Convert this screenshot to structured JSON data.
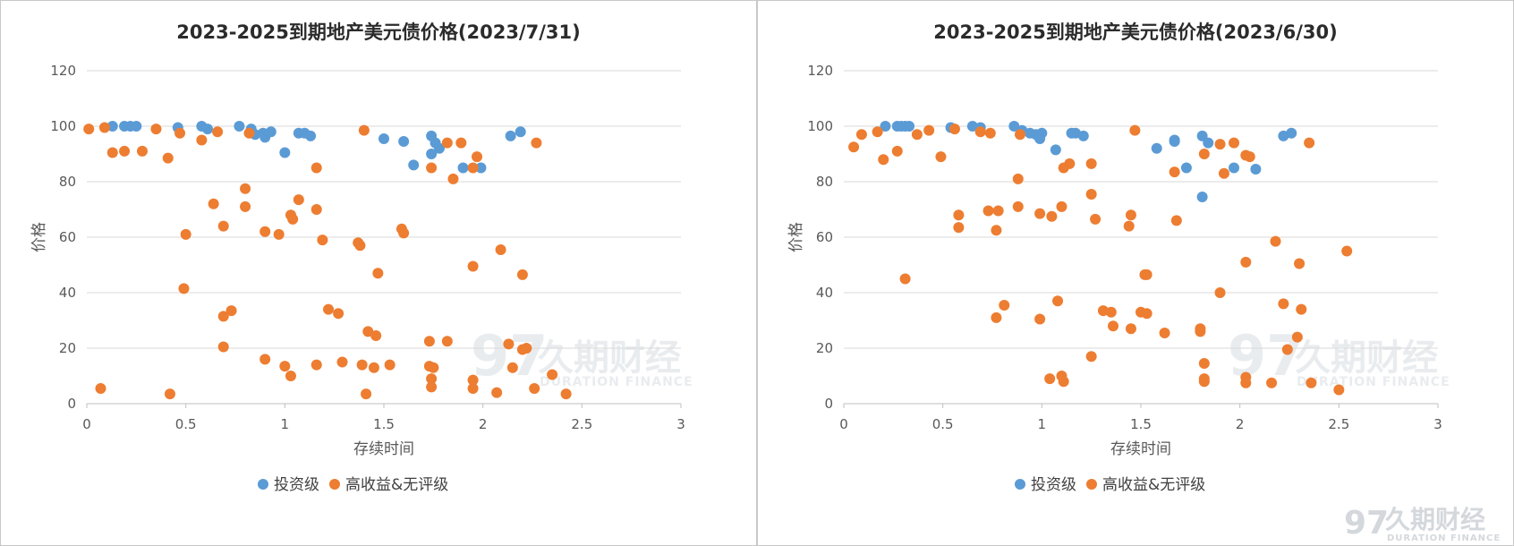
{
  "colors": {
    "invest": "#5b9bd5",
    "high": "#ed7d31"
  },
  "watermark": {
    "brand": "久期财经",
    "sub": "DURATION FINANCE"
  },
  "chart_data": [
    {
      "type": "scatter",
      "title": "2023-2025到期地产美元债价格(2023/7/31)",
      "xlabel": "存续时间",
      "ylabel": "价格",
      "xlim": [
        0,
        3
      ],
      "ylim": [
        0,
        120
      ],
      "xticks": [
        "0",
        "0.5",
        "1",
        "1.5",
        "2",
        "2.5",
        "3"
      ],
      "yticks": [
        "0",
        "20",
        "40",
        "60",
        "80",
        "100",
        "120"
      ],
      "grid": true,
      "legend_position": "bottom",
      "series": [
        {
          "name": "投资级",
          "points": [
            [
              0.13,
              100
            ],
            [
              0.19,
              100
            ],
            [
              0.22,
              100
            ],
            [
              0.25,
              100
            ],
            [
              0.46,
              99.5
            ],
            [
              0.58,
              100
            ],
            [
              0.61,
              99
            ],
            [
              0.77,
              100
            ],
            [
              0.83,
              99
            ],
            [
              0.85,
              97
            ],
            [
              0.89,
              97.5
            ],
            [
              0.9,
              96
            ],
            [
              0.93,
              98
            ],
            [
              1.0,
              90.5
            ],
            [
              1.07,
              97.5
            ],
            [
              1.1,
              97.5
            ],
            [
              1.13,
              96.5
            ],
            [
              1.5,
              95.5
            ],
            [
              1.6,
              94.5
            ],
            [
              1.65,
              86
            ],
            [
              1.74,
              96.5
            ],
            [
              1.74,
              90
            ],
            [
              1.76,
              94
            ],
            [
              1.78,
              92
            ],
            [
              1.9,
              85
            ],
            [
              1.99,
              85
            ],
            [
              2.14,
              96.5
            ],
            [
              2.19,
              98
            ]
          ]
        },
        {
          "name": "高收益&无评级",
          "points": [
            [
              0.01,
              99
            ],
            [
              0.07,
              5.5
            ],
            [
              0.09,
              99.5
            ],
            [
              0.13,
              90.5
            ],
            [
              0.19,
              91
            ],
            [
              0.28,
              91
            ],
            [
              0.35,
              99
            ],
            [
              0.41,
              88.5
            ],
            [
              0.42,
              3.5
            ],
            [
              0.47,
              97.5
            ],
            [
              0.49,
              41.5
            ],
            [
              0.5,
              61
            ],
            [
              0.58,
              95
            ],
            [
              0.64,
              72
            ],
            [
              0.66,
              98
            ],
            [
              0.69,
              64
            ],
            [
              0.69,
              31.5
            ],
            [
              0.69,
              20.5
            ],
            [
              0.73,
              33.5
            ],
            [
              0.8,
              77.5
            ],
            [
              0.8,
              71
            ],
            [
              0.82,
              97.5
            ],
            [
              0.9,
              62
            ],
            [
              0.9,
              16
            ],
            [
              0.97,
              61
            ],
            [
              1.0,
              13.5
            ],
            [
              1.03,
              10
            ],
            [
              1.03,
              68
            ],
            [
              1.04,
              66.5
            ],
            [
              1.07,
              73.5
            ],
            [
              1.16,
              85
            ],
            [
              1.16,
              70
            ],
            [
              1.16,
              14
            ],
            [
              1.19,
              59
            ],
            [
              1.22,
              34
            ],
            [
              1.27,
              32.5
            ],
            [
              1.29,
              15
            ],
            [
              1.37,
              58
            ],
            [
              1.38,
              57
            ],
            [
              1.39,
              14
            ],
            [
              1.4,
              98.5
            ],
            [
              1.41,
              3.5
            ],
            [
              1.42,
              26
            ],
            [
              1.45,
              13
            ],
            [
              1.46,
              24.5
            ],
            [
              1.47,
              47
            ],
            [
              1.53,
              14
            ],
            [
              1.59,
              63
            ],
            [
              1.6,
              61.5
            ],
            [
              1.73,
              22.5
            ],
            [
              1.73,
              13.5
            ],
            [
              1.74,
              85
            ],
            [
              1.74,
              9
            ],
            [
              1.74,
              6
            ],
            [
              1.75,
              13
            ],
            [
              1.82,
              94
            ],
            [
              1.82,
              22.5
            ],
            [
              1.85,
              81
            ],
            [
              1.89,
              94
            ],
            [
              1.95,
              85
            ],
            [
              1.95,
              49.5
            ],
            [
              1.95,
              8.5
            ],
            [
              1.95,
              5.5
            ],
            [
              1.97,
              89
            ],
            [
              2.07,
              4
            ],
            [
              2.09,
              55.5
            ],
            [
              2.13,
              21.5
            ],
            [
              2.15,
              13
            ],
            [
              2.2,
              19.5
            ],
            [
              2.2,
              46.5
            ],
            [
              2.22,
              20
            ],
            [
              2.26,
              5.5
            ],
            [
              2.27,
              94
            ],
            [
              2.35,
              10.5
            ],
            [
              2.42,
              3.5
            ]
          ]
        }
      ]
    },
    {
      "type": "scatter",
      "title": "2023-2025到期地产美元债价格(2023/6/30)",
      "xlabel": "存续时间",
      "ylabel": "价格",
      "xlim": [
        0,
        3
      ],
      "ylim": [
        0,
        120
      ],
      "xticks": [
        "0",
        "0.5",
        "1",
        "1.5",
        "2",
        "2.5",
        "3"
      ],
      "yticks": [
        "0",
        "20",
        "40",
        "60",
        "80",
        "100",
        "120"
      ],
      "grid": true,
      "legend_position": "bottom",
      "series": [
        {
          "name": "投资级",
          "points": [
            [
              0.21,
              100
            ],
            [
              0.27,
              100
            ],
            [
              0.29,
              100
            ],
            [
              0.31,
              100
            ],
            [
              0.33,
              100
            ],
            [
              0.54,
              99.5
            ],
            [
              0.65,
              100
            ],
            [
              0.69,
              99.5
            ],
            [
              0.86,
              100
            ],
            [
              0.9,
              98.5
            ],
            [
              0.94,
              97.5
            ],
            [
              0.97,
              97
            ],
            [
              0.99,
              95.5
            ],
            [
              1.0,
              97.5
            ],
            [
              1.07,
              91.5
            ],
            [
              1.15,
              97.5
            ],
            [
              1.17,
              97.5
            ],
            [
              1.21,
              96.5
            ],
            [
              1.58,
              92
            ],
            [
              1.67,
              94.5
            ],
            [
              1.67,
              95
            ],
            [
              1.73,
              85
            ],
            [
              1.81,
              96.5
            ],
            [
              1.81,
              74.5
            ],
            [
              1.84,
              94
            ],
            [
              1.97,
              85
            ],
            [
              2.08,
              84.5
            ],
            [
              2.22,
              96.5
            ],
            [
              2.26,
              97.5
            ]
          ]
        },
        {
          "name": "高收益&无评级",
          "points": [
            [
              0.05,
              92.5
            ],
            [
              0.09,
              97
            ],
            [
              0.17,
              98
            ],
            [
              0.2,
              88
            ],
            [
              0.27,
              91
            ],
            [
              0.31,
              45
            ],
            [
              0.37,
              97
            ],
            [
              0.43,
              98.5
            ],
            [
              0.49,
              89
            ],
            [
              0.56,
              99
            ],
            [
              0.58,
              68
            ],
            [
              0.58,
              63.5
            ],
            [
              0.69,
              98
            ],
            [
              0.73,
              69.5
            ],
            [
              0.74,
              97.5
            ],
            [
              0.77,
              62.5
            ],
            [
              0.77,
              31
            ],
            [
              0.78,
              69.5
            ],
            [
              0.81,
              35.5
            ],
            [
              0.88,
              81
            ],
            [
              0.88,
              71
            ],
            [
              0.89,
              97
            ],
            [
              0.99,
              68.5
            ],
            [
              0.99,
              30.5
            ],
            [
              1.04,
              9
            ],
            [
              1.05,
              67.5
            ],
            [
              1.08,
              37
            ],
            [
              1.1,
              71
            ],
            [
              1.1,
              10
            ],
            [
              1.11,
              8
            ],
            [
              1.11,
              85
            ],
            [
              1.14,
              86.5
            ],
            [
              1.25,
              86.5
            ],
            [
              1.25,
              75.5
            ],
            [
              1.25,
              17
            ],
            [
              1.27,
              66.5
            ],
            [
              1.31,
              33.5
            ],
            [
              1.35,
              33
            ],
            [
              1.36,
              28
            ],
            [
              1.44,
              64
            ],
            [
              1.45,
              68
            ],
            [
              1.45,
              27
            ],
            [
              1.47,
              98.5
            ],
            [
              1.5,
              33
            ],
            [
              1.52,
              46.5
            ],
            [
              1.53,
              32.5
            ],
            [
              1.53,
              46.5
            ],
            [
              1.62,
              25.5
            ],
            [
              1.67,
              83.5
            ],
            [
              1.68,
              66
            ],
            [
              1.8,
              27
            ],
            [
              1.8,
              26
            ],
            [
              1.82,
              90
            ],
            [
              1.82,
              8
            ],
            [
              1.82,
              9
            ],
            [
              1.82,
              14.5
            ],
            [
              1.9,
              40
            ],
            [
              1.9,
              93.5
            ],
            [
              1.92,
              83
            ],
            [
              1.97,
              94
            ],
            [
              2.03,
              89.5
            ],
            [
              2.03,
              51
            ],
            [
              2.03,
              9.5
            ],
            [
              2.03,
              7.5
            ],
            [
              2.05,
              89
            ],
            [
              2.16,
              7.5
            ],
            [
              2.18,
              58.5
            ],
            [
              2.22,
              36
            ],
            [
              2.24,
              19.5
            ],
            [
              2.29,
              24
            ],
            [
              2.3,
              50.5
            ],
            [
              2.31,
              34
            ],
            [
              2.35,
              94
            ],
            [
              2.36,
              7.5
            ],
            [
              2.5,
              5
            ],
            [
              2.54,
              55
            ]
          ]
        }
      ]
    }
  ]
}
